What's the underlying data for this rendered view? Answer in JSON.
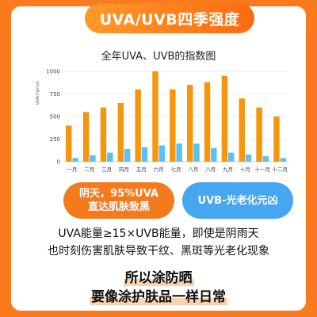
{
  "header": {
    "title": "UVA/UVB四季强度"
  },
  "chart_data": {
    "type": "bar",
    "title": "全年UVA、UVB的指数图",
    "ylabel": "UVA(mJ/m2)",
    "categories": [
      "一月",
      "二月",
      "三月",
      "四月",
      "五月",
      "六月",
      "七月",
      "八月",
      "八月",
      "九月",
      "十月",
      "十一月",
      "十二月"
    ],
    "series": [
      {
        "values": [
          400,
          550,
          600,
          650,
          800,
          1000,
          800,
          850,
          880,
          950,
          700,
          600,
          500
        ],
        "color": "#f5960c"
      },
      {
        "values": [
          40,
          70,
          100,
          140,
          160,
          180,
          200,
          200,
          150,
          100,
          80,
          60,
          40
        ],
        "color": "#5bc0f5"
      }
    ],
    "ylim": [
      0,
      1000
    ],
    "yticks": [
      0,
      250,
      500,
      750,
      1000
    ],
    "grid": true
  },
  "badges": {
    "uva": "阴天，95%UVA\n直达肌肤致黑",
    "uvb": "UVB-光老化元凶"
  },
  "body": {
    "line1": "UVA能量≥15×UVB能量，即使是阴雨天",
    "line2": "也时刻伤害肌肤导致干纹、黑斑等光老化现象"
  },
  "cta": {
    "line1": "所以涂防晒",
    "line2": "要像涂护肤品一样日常"
  }
}
